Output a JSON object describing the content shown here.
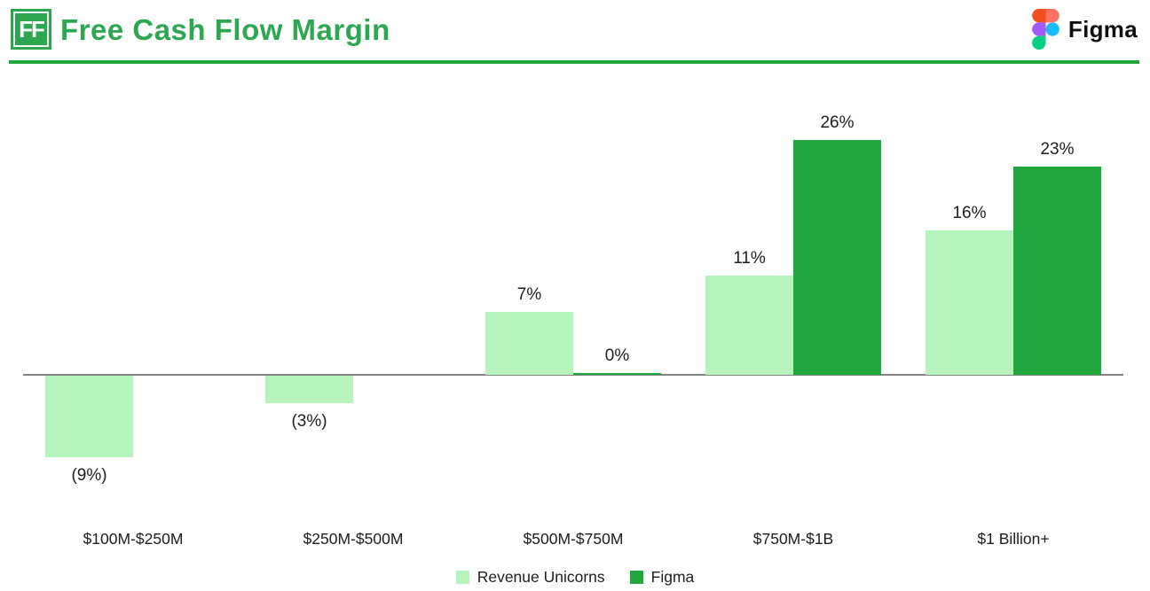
{
  "header": {
    "logo_text": "FF",
    "title": "Free Cash Flow Margin",
    "brand": "Figma"
  },
  "colors": {
    "title_green": "#2da850",
    "accent_green": "#22a63e",
    "figma_green": "#22a63e",
    "unicorn_green": "#b7f4bb",
    "axis_gray": "#828282",
    "text_dark": "#1d1d1d"
  },
  "chart_data": {
    "type": "bar",
    "title": "Free Cash Flow Margin",
    "unit": "%",
    "grid": false,
    "legend_position": "bottom",
    "baseline": 0,
    "ylim": [
      -12,
      30
    ],
    "categories": [
      "$100M-$250M",
      "$250M-$500M",
      "$500M-$750M",
      "$750M-$1B",
      "$1 Billion+"
    ],
    "series": [
      {
        "name": "Revenue Unicorns",
        "color_key": "unicorn_green",
        "values": [
          -9,
          -3,
          7,
          11,
          16
        ],
        "labels": [
          "(9%)",
          "(3%)",
          "7%",
          "11%",
          "16%"
        ]
      },
      {
        "name": "Figma",
        "color_key": "figma_green",
        "values": [
          null,
          null,
          0,
          26,
          23
        ],
        "labels": [
          null,
          null,
          "0%",
          "26%",
          "23%"
        ]
      }
    ]
  }
}
